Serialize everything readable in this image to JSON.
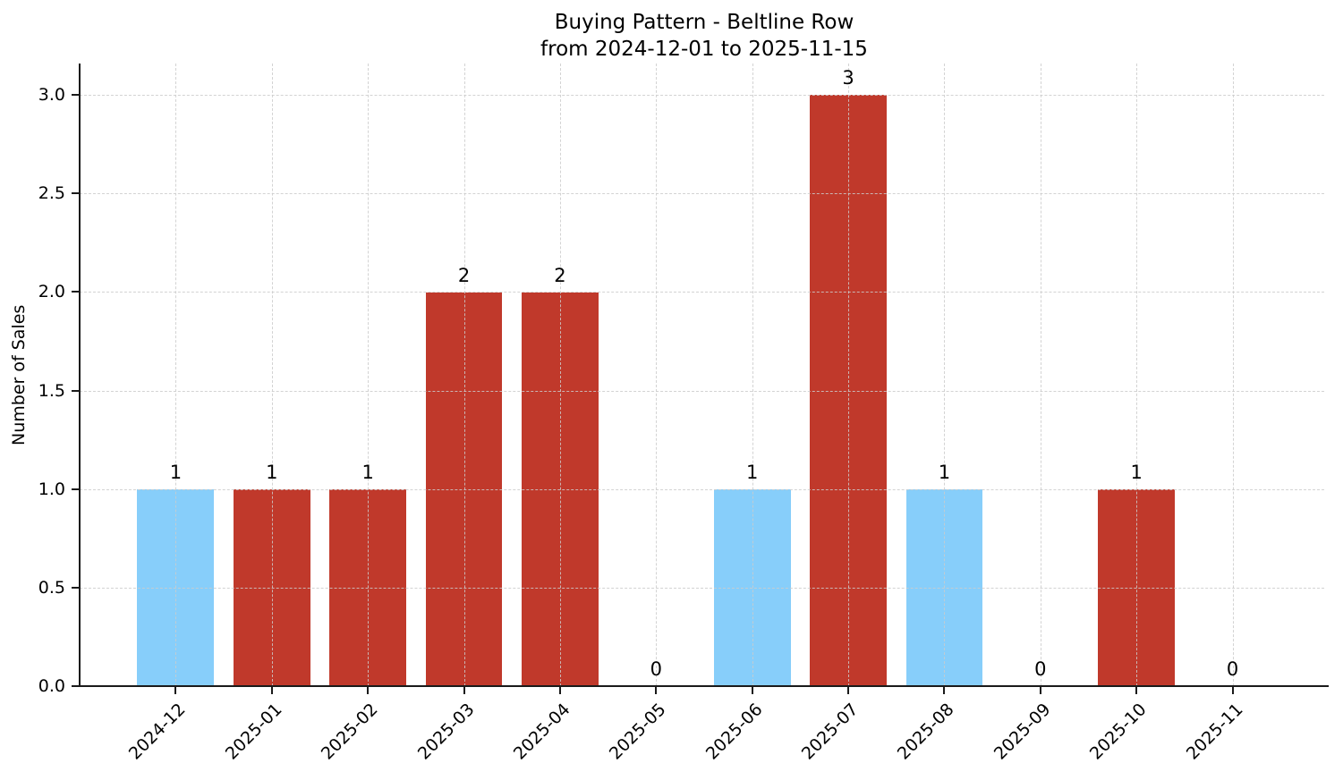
{
  "chart_data": {
    "type": "bar",
    "title": "Buying Pattern - Beltline Row",
    "subtitle": "from 2024-12-01 to 2025-11-15",
    "xlabel": "",
    "ylabel": "Number of Sales",
    "categories": [
      "2024-12",
      "2025-01",
      "2025-02",
      "2025-03",
      "2025-04",
      "2025-05",
      "2025-06",
      "2025-07",
      "2025-08",
      "2025-09",
      "2025-10",
      "2025-11"
    ],
    "values": [
      1,
      1,
      1,
      2,
      2,
      0,
      1,
      3,
      1,
      0,
      1,
      0
    ],
    "bar_colors": [
      "#87CEFA",
      "#C0392B",
      "#C0392B",
      "#C0392B",
      "#C0392B",
      "#C0392B",
      "#87CEFA",
      "#C0392B",
      "#87CEFA",
      "#C0392B",
      "#C0392B",
      "#C0392B"
    ],
    "ytick_labels": [
      "0.0",
      "0.5",
      "1.0",
      "1.5",
      "2.0",
      "2.5",
      "3.0"
    ],
    "ylim": [
      0,
      3.16
    ],
    "bar_width": 0.8,
    "grid": "dashed",
    "legend_position": "none",
    "colors": {
      "highlight_blue": "#87CEFA",
      "primary_red": "#C0392B",
      "grid": "#cbcbcb",
      "axis": "#1a1a1a",
      "text": "#000000",
      "background": "#ffffff"
    }
  }
}
